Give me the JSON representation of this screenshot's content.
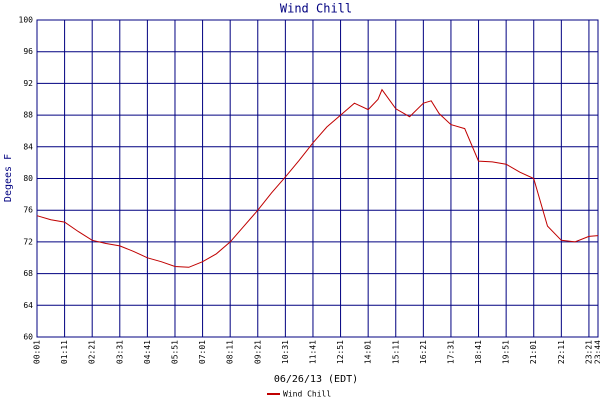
{
  "chart_data": {
    "type": "line",
    "title": "Wind Chill",
    "xlabel": "06/26/13 (EDT)",
    "ylabel": "Degees F",
    "x": [
      "00:01",
      "00:36",
      "01:11",
      "01:46",
      "02:21",
      "02:56",
      "03:31",
      "04:06",
      "04:41",
      "05:16",
      "05:51",
      "06:26",
      "07:01",
      "07:36",
      "08:11",
      "08:46",
      "09:21",
      "09:56",
      "10:31",
      "11:06",
      "11:41",
      "12:16",
      "12:51",
      "13:26",
      "14:01",
      "14:26",
      "14:36",
      "15:11",
      "15:46",
      "16:21",
      "16:41",
      "17:01",
      "17:31",
      "18:06",
      "18:41",
      "19:16",
      "19:51",
      "20:26",
      "21:01",
      "21:36",
      "22:11",
      "22:46",
      "23:21",
      "23:44"
    ],
    "series": [
      {
        "name": "Wind Chill",
        "color": "#c00000",
        "values": [
          75.3,
          74.8,
          74.5,
          73.3,
          72.2,
          71.8,
          71.5,
          70.8,
          70.0,
          69.5,
          68.9,
          68.8,
          69.5,
          70.5,
          72.0,
          74.0,
          76.0,
          78.2,
          80.2,
          82.3,
          84.5,
          86.5,
          88.0,
          89.5,
          88.7,
          90.0,
          91.2,
          88.8,
          87.8,
          89.5,
          89.8,
          88.2,
          86.8,
          86.3,
          82.2,
          82.1,
          81.8,
          80.8,
          80.0,
          74.0,
          72.2,
          72.0,
          72.7,
          72.8
        ]
      }
    ],
    "xlim": [
      "00:01",
      "23:44"
    ],
    "xticks": [
      "00:01",
      "01:11",
      "02:21",
      "03:31",
      "04:41",
      "05:51",
      "07:01",
      "08:11",
      "09:21",
      "10:31",
      "11:41",
      "12:51",
      "14:01",
      "15:11",
      "16:21",
      "17:31",
      "18:41",
      "19:51",
      "21:01",
      "22:11",
      "23:21",
      "23:44"
    ],
    "ylim": [
      60,
      100
    ],
    "yticks": [
      60,
      64,
      68,
      72,
      76,
      80,
      84,
      88,
      92,
      96,
      100
    ],
    "grid": true,
    "grid_color": "#000080"
  }
}
